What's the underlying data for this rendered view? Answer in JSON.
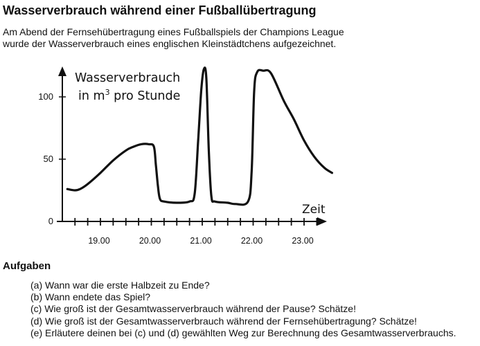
{
  "page": {
    "title": "Wasserverbrauch während einer Fußballübertragung",
    "intro_line1": "Am Abend der Fernsehübertragung eines Fußballspiels der Champions League",
    "intro_line2": "wurde der Wasserverbrauch eines englischen Kleinstädtchens aufgezeichnet."
  },
  "chart_data": {
    "type": "line",
    "ylabel_line1": "Wasserverbrauch",
    "ylabel_line2_pre": "in m",
    "ylabel_line2_sup": "3",
    "ylabel_line2_post": " pro Stunde",
    "xlabel": "Zeit",
    "yticks": [
      {
        "value": 0,
        "label": "0"
      },
      {
        "value": 50,
        "label": "50"
      },
      {
        "value": 100,
        "label": "100"
      }
    ],
    "xticks": [
      {
        "value": 19,
        "label": "19.00"
      },
      {
        "value": 20,
        "label": "20.00"
      },
      {
        "value": 21,
        "label": "21.00"
      },
      {
        "value": 22,
        "label": "22.00"
      },
      {
        "value": 23,
        "label": "23.00"
      }
    ],
    "xlim": [
      18.35,
      23.6
    ],
    "ylim": [
      0,
      118
    ],
    "grid": false,
    "series": [
      {
        "x": [
          18.35,
          18.5,
          18.6,
          18.75,
          19.0,
          19.25,
          19.5,
          19.65,
          19.8,
          19.95,
          20.05,
          20.09,
          20.13,
          20.17,
          20.25,
          20.5,
          20.75,
          20.85,
          20.92,
          20.98,
          21.03,
          21.08,
          21.13,
          21.18,
          21.25,
          21.5,
          21.65,
          21.9,
          21.97,
          22.02,
          22.08,
          22.2,
          22.35,
          22.6,
          22.8,
          23.0,
          23.2,
          23.4,
          23.55
        ],
        "y": [
          26,
          25,
          26,
          30,
          39,
          49,
          57,
          60,
          62,
          62,
          60,
          45,
          28,
          18,
          16,
          15,
          16,
          22,
          65,
          105,
          122,
          115,
          55,
          20,
          16,
          15,
          14,
          16,
          40,
          105,
          120,
          121,
          119,
          97,
          82,
          65,
          52,
          43,
          39
        ]
      }
    ]
  },
  "tasks": {
    "heading": "Aufgaben",
    "items": [
      "(a) Wann war die erste Halbzeit zu Ende?",
      "(b) Wann endete das Spiel?",
      "(c) Wie groß ist der Gesamtwasserverbrauch während der Pause? Schätze!",
      "(d) Wie groß ist der Gesamtwasserverbrauch während der Fernsehübertragung? Schätze!",
      "(e) Erläutere deinen bei (c) und (d) gewählten Weg zur Berechnung des Gesamtwasserverbrauchs."
    ]
  }
}
